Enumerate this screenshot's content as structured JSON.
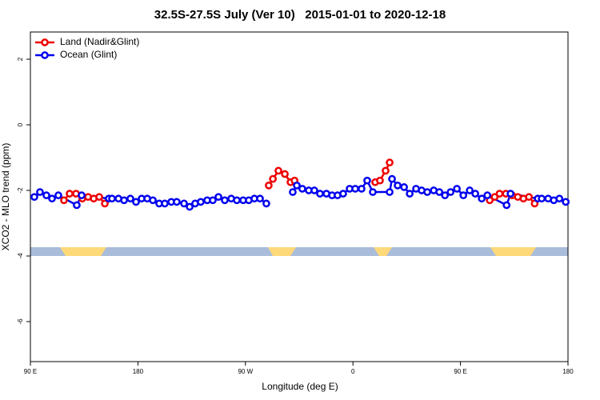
{
  "chart_data": {
    "type": "line",
    "title": "32.5S-27.5S July (Ver 10)   2015-01-01 to 2020-12-18",
    "x_label": "Longitude (deg E)",
    "y_label": "XCO2 - MLO trend (ppm)",
    "xlim": [
      90,
      540
    ],
    "ylim": [
      -7.22,
      2.83
    ],
    "xticks": [
      {
        "value": 90,
        "label": "90 E"
      },
      180,
      {
        "value": 270,
        "label": "90 W"
      },
      {
        "value": 360,
        "label": "0"
      },
      {
        "value": 450,
        "label": "90 E"
      },
      {
        "value": 540,
        "label": "180"
      }
    ],
    "yticks": [
      2,
      0,
      -2,
      -4,
      -6
    ],
    "legend": "top-left",
    "series": [
      {
        "name": "Land (Nadir&Glint)",
        "color": "#ee0000",
        "x": [
          118.1,
          122.8,
          128.2,
          133.5,
          138.3,
          143.0,
          147.6,
          152.3,
          null,
          289.5,
          293.0,
          297.6,
          303.0,
          307.7,
          311.1,
          null,
          378.6,
          382.6,
          387.3,
          390.7,
          null,
          474.5,
          478.6,
          482.7,
          488.0,
          493.3,
          498.0,
          502.7,
          507.3,
          512.1
        ],
        "values": [
          -2.3,
          -2.1,
          -2.1,
          -2.25,
          -2.2,
          -2.25,
          -2.2,
          -2.4,
          null,
          -1.85,
          -1.65,
          -1.4,
          -1.5,
          -1.75,
          -1.7,
          null,
          -1.75,
          -1.7,
          -1.4,
          -1.15,
          null,
          -2.3,
          -2.2,
          -2.1,
          -2.1,
          -2.15,
          -2.2,
          -2.25,
          -2.2,
          -2.4
        ]
      },
      {
        "name": "Ocean (Glint)",
        "color": "#0000ee",
        "x": [
          93.3,
          98.0,
          103.4,
          108.1,
          113.4,
          128.8,
          132.9,
          155.6,
          158.3,
          163.7,
          168.4,
          173.7,
          178.4,
          183.1,
          187.8,
          192.5,
          197.8,
          202.5,
          207.9,
          212.5,
          218.6,
          223.3,
          227.9,
          232.6,
          238.0,
          242.7,
          247.4,
          252.7,
          258.1,
          262.8,
          268.1,
          272.8,
          277.5,
          282.2,
          287.5,
          null,
          309.6,
          313.0,
          317.6,
          323.0,
          327.7,
          332.4,
          337.8,
          342.5,
          347.1,
          351.8,
          357.2,
          361.9,
          367.2,
          371.9,
          376.6,
          390.7,
          392.7,
          397.4,
          402.8,
          407.5,
          412.8,
          417.5,
          422.2,
          427.6,
          432.3,
          437.0,
          441.7,
          447.0,
          452.4,
          457.7,
          462.4,
          467.8,
          472.5,
          488.6,
          491.9,
          514.7,
          518.0,
          523.4,
          528.1,
          532.8,
          538.1
        ],
        "values": [
          -2.2,
          -2.05,
          -2.15,
          -2.25,
          -2.15,
          -2.45,
          -2.15,
          -2.25,
          -2.25,
          -2.25,
          -2.3,
          -2.25,
          -2.35,
          -2.25,
          -2.25,
          -2.3,
          -2.4,
          -2.4,
          -2.35,
          -2.35,
          -2.4,
          -2.5,
          -2.4,
          -2.35,
          -2.3,
          -2.3,
          -2.2,
          -2.3,
          -2.25,
          -2.3,
          -2.3,
          -2.3,
          -2.25,
          -2.25,
          -2.4,
          null,
          -2.05,
          -1.85,
          -1.95,
          -2.0,
          -2.0,
          -2.1,
          -2.1,
          -2.15,
          -2.15,
          -2.1,
          -1.95,
          -1.95,
          -1.95,
          -1.7,
          -2.05,
          -2.05,
          -1.65,
          -1.85,
          -1.9,
          -2.1,
          -1.95,
          -2.0,
          -2.05,
          -2.0,
          -2.05,
          -2.15,
          -2.05,
          -1.95,
          -2.15,
          -2.0,
          -2.1,
          -2.25,
          -2.15,
          -2.45,
          -2.1,
          -2.25,
          -2.25,
          -2.25,
          -2.3,
          -2.25,
          -2.35
        ]
      }
    ]
  }
}
